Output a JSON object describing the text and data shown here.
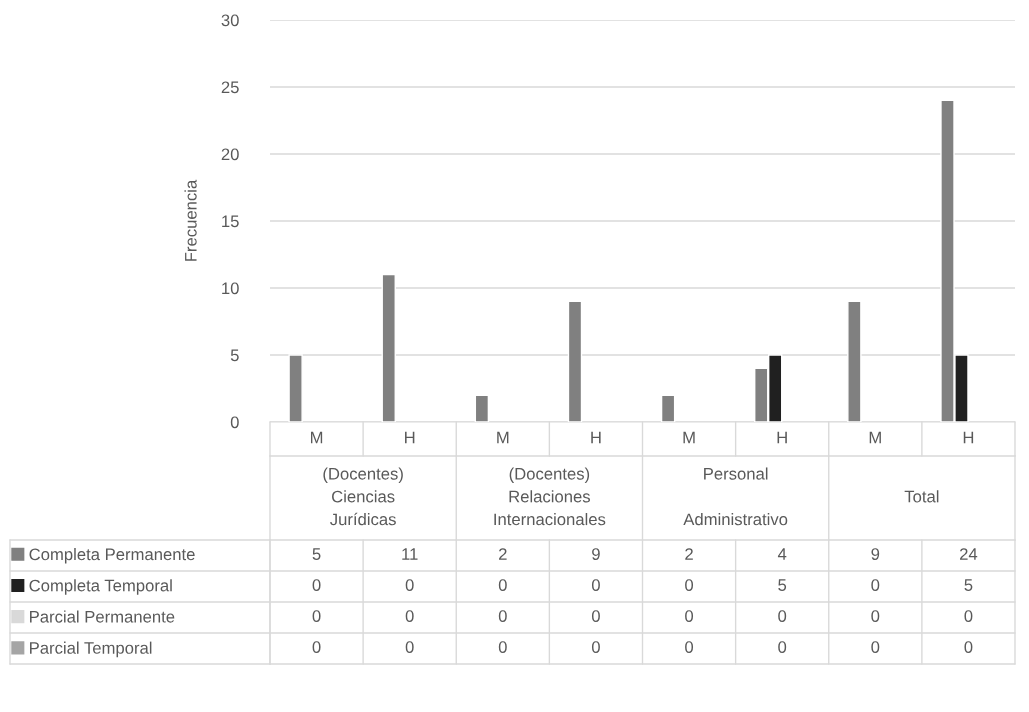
{
  "chart_data": {
    "type": "bar",
    "ylabel": "Frecuencia",
    "categories": [
      "M",
      "H",
      "M",
      "H",
      "M",
      "H",
      "M",
      "H"
    ],
    "annotations": [
      "(Docentes)\nCiencias\nJurídicas",
      "(Docentes)\nRelaciones\nInternacionales",
      "Personal\n\nAdministrativo",
      "Total"
    ],
    "series": [
      {
        "name": "Completa Permanente",
        "color": "#808080",
        "values": [
          5,
          11,
          2,
          9,
          2,
          4,
          9,
          24
        ]
      },
      {
        "name": "Completa Temporal",
        "color": "#202020",
        "values": [
          0,
          0,
          0,
          0,
          0,
          5,
          0,
          5
        ]
      },
      {
        "name": "Parcial Permanente",
        "color": "#d9d9d9",
        "values": [
          0,
          0,
          0,
          0,
          0,
          0,
          0,
          0
        ]
      },
      {
        "name": "Parcial Temporal",
        "color": "#a5a5a5",
        "values": [
          0,
          0,
          0,
          0,
          0,
          0,
          0,
          0
        ]
      }
    ],
    "ylim": [
      0,
      30
    ],
    "yticks": [
      0,
      5,
      10,
      15,
      20,
      25,
      30
    ],
    "grid": "y",
    "data_labels": true,
    "legend": "bottom left"
  }
}
